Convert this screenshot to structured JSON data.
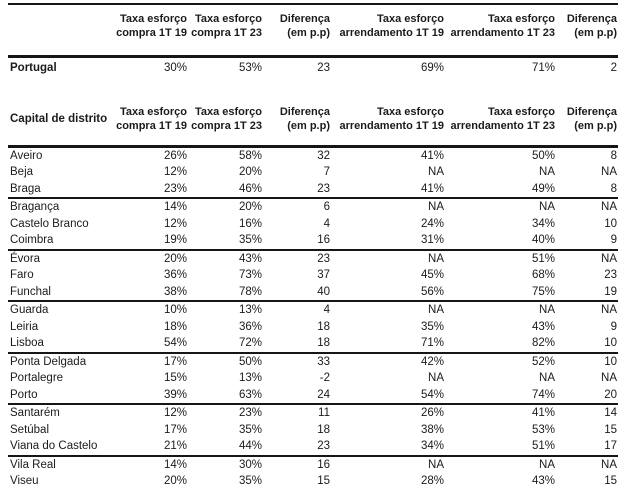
{
  "page": {
    "background_color": "#ffffff",
    "text_color": "#1b1b1b",
    "rule_color": "#161616"
  },
  "chart_data": {
    "type": "table",
    "column_headers": [
      {
        "line1": "Taxa esforço",
        "line2": "compra 1T 19"
      },
      {
        "line1": "Taxa esforço",
        "line2": "compra 1T 23"
      },
      {
        "line1": "Diferença",
        "line2": "(em p.p)"
      },
      {
        "line1": "Taxa esforço",
        "line2": "arrendamento 1T 19"
      },
      {
        "line1": "Taxa esforço",
        "line2": "arrendamento 1T 23"
      },
      {
        "line1": "Diferença",
        "line2": "(em p.p)"
      }
    ],
    "tables": [
      {
        "corner_label": "",
        "rows": [
          {
            "name": "Portugal",
            "values": [
              "30%",
              "53%",
              "23",
              "69%",
              "71%",
              "2"
            ],
            "group_end": false
          }
        ]
      },
      {
        "corner_label": "Capital de distrito",
        "rows": [
          {
            "name": "Aveiro",
            "values": [
              "26%",
              "58%",
              "32",
              "41%",
              "50%",
              "8"
            ],
            "group_end": false
          },
          {
            "name": "Beja",
            "values": [
              "12%",
              "20%",
              "7",
              "NA",
              "NA",
              "NA"
            ],
            "group_end": false
          },
          {
            "name": "Braga",
            "values": [
              "23%",
              "46%",
              "23",
              "41%",
              "49%",
              "8"
            ],
            "group_end": true
          },
          {
            "name": "Bragança",
            "values": [
              "14%",
              "20%",
              "6",
              "NA",
              "NA",
              "NA"
            ],
            "group_end": false
          },
          {
            "name": "Castelo Branco",
            "values": [
              "12%",
              "16%",
              "4",
              "24%",
              "34%",
              "10"
            ],
            "group_end": false
          },
          {
            "name": "Coimbra",
            "values": [
              "19%",
              "35%",
              "16",
              "31%",
              "40%",
              "9"
            ],
            "group_end": true
          },
          {
            "name": "Évora",
            "values": [
              "20%",
              "43%",
              "23",
              "NA",
              "51%",
              "NA"
            ],
            "group_end": false
          },
          {
            "name": "Faro",
            "values": [
              "36%",
              "73%",
              "37",
              "45%",
              "68%",
              "23"
            ],
            "group_end": false
          },
          {
            "name": "Funchal",
            "values": [
              "38%",
              "78%",
              "40",
              "56%",
              "75%",
              "19"
            ],
            "group_end": true
          },
          {
            "name": "Guarda",
            "values": [
              "10%",
              "13%",
              "4",
              "NA",
              "NA",
              "NA"
            ],
            "group_end": false
          },
          {
            "name": "Leiria",
            "values": [
              "18%",
              "36%",
              "18",
              "35%",
              "43%",
              "9"
            ],
            "group_end": false
          },
          {
            "name": "Lisboa",
            "values": [
              "54%",
              "72%",
              "18",
              "71%",
              "82%",
              "10"
            ],
            "group_end": true
          },
          {
            "name": "Ponta Delgada",
            "values": [
              "17%",
              "50%",
              "33",
              "42%",
              "52%",
              "10"
            ],
            "group_end": false
          },
          {
            "name": "Portalegre",
            "values": [
              "15%",
              "13%",
              "-2",
              "NA",
              "NA",
              "NA"
            ],
            "group_end": false
          },
          {
            "name": "Porto",
            "values": [
              "39%",
              "63%",
              "24",
              "54%",
              "74%",
              "20"
            ],
            "group_end": true
          },
          {
            "name": "Santarém",
            "values": [
              "12%",
              "23%",
              "11",
              "26%",
              "41%",
              "14"
            ],
            "group_end": false
          },
          {
            "name": "Setúbal",
            "values": [
              "17%",
              "35%",
              "18",
              "38%",
              "53%",
              "15"
            ],
            "group_end": false
          },
          {
            "name": "Viana do Castelo",
            "values": [
              "21%",
              "44%",
              "23",
              "34%",
              "51%",
              "17"
            ],
            "group_end": true
          },
          {
            "name": "Vila Real",
            "values": [
              "14%",
              "30%",
              "16",
              "NA",
              "NA",
              "NA"
            ],
            "group_end": false
          },
          {
            "name": "Viseu",
            "values": [
              "20%",
              "35%",
              "15",
              "28%",
              "43%",
              "15"
            ],
            "group_end": false
          }
        ]
      }
    ]
  }
}
